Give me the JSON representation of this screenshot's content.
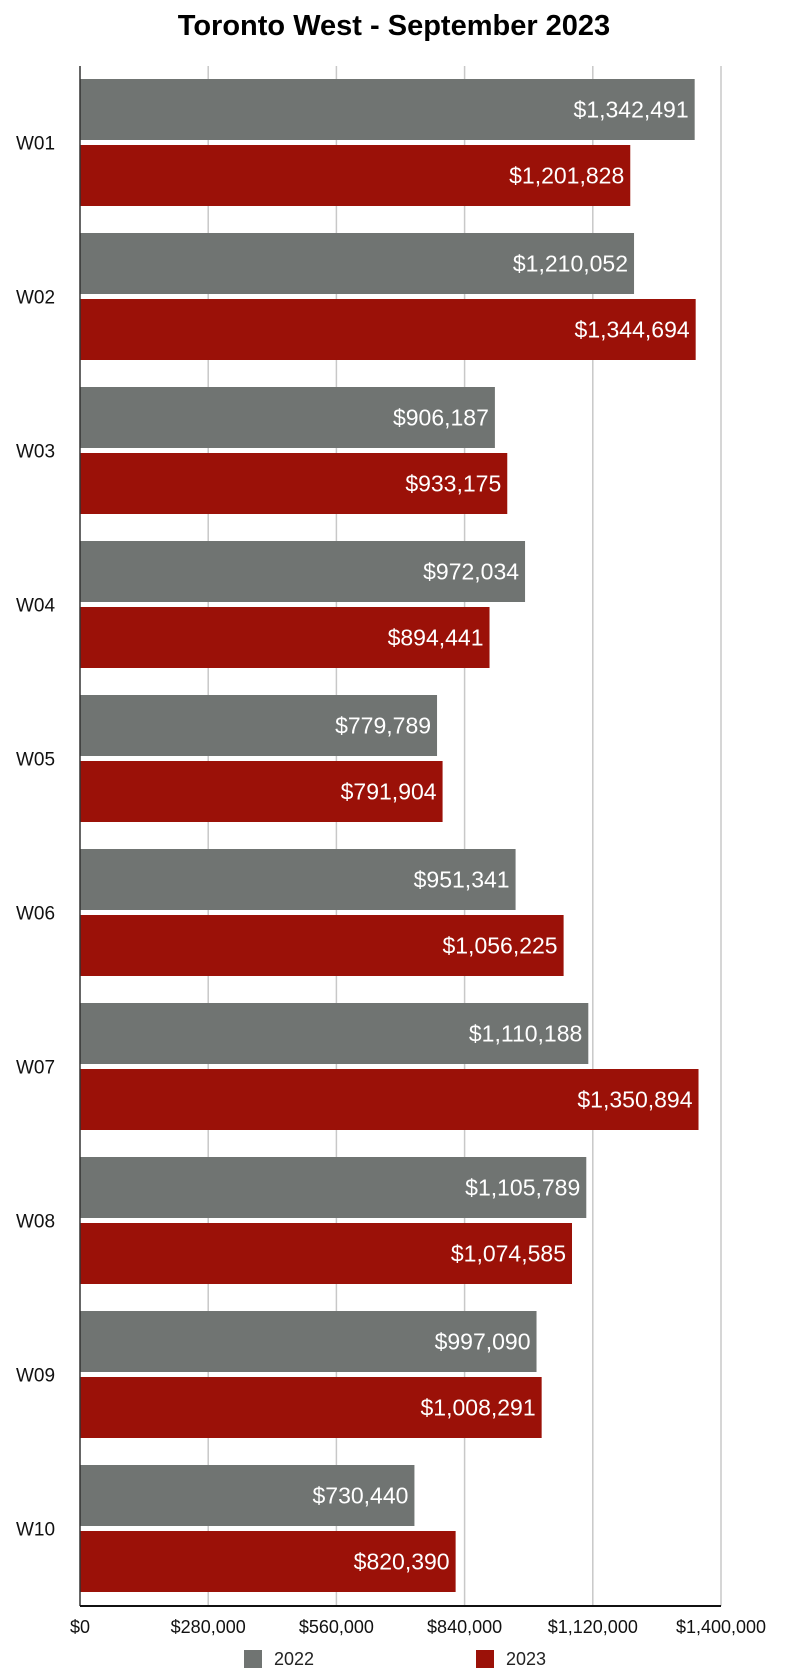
{
  "chart_data": {
    "type": "bar",
    "orientation": "horizontal",
    "title": "Toronto West - September 2023",
    "categories": [
      "W01",
      "W02",
      "W03",
      "W04",
      "W05",
      "W06",
      "W07",
      "W08",
      "W09",
      "W10"
    ],
    "series": [
      {
        "name": "2022",
        "color": "#707472",
        "values": [
          1342491,
          1210052,
          906187,
          972034,
          779789,
          951341,
          1110188,
          1105789,
          997090,
          730440
        ],
        "labels": [
          "$1,342,491",
          "$1,210,052",
          "$906,187",
          "$972,034",
          "$779,789",
          "$951,341",
          "$1,110,188",
          "$1,105,789",
          "$997,090",
          "$730,440"
        ]
      },
      {
        "name": "2023",
        "color": "#9b1108",
        "values": [
          1201828,
          1344694,
          933175,
          894441,
          791904,
          1056225,
          1350894,
          1074585,
          1008291,
          820390
        ],
        "labels": [
          "$1,201,828",
          "$1,344,694",
          "$933,175",
          "$894,441",
          "$791,904",
          "$1,056,225",
          "$1,350,894",
          "$1,074,585",
          "$1,008,291",
          "$820,390"
        ]
      }
    ],
    "xlim": [
      0,
      1400000
    ],
    "xticks": [
      0,
      280000,
      560000,
      840000,
      1120000,
      1400000
    ],
    "xtick_labels": [
      "$0",
      "$280,000",
      "$560,000",
      "$840,000",
      "$1,120,000",
      "$1,400,000"
    ],
    "grid": true,
    "legend": "bottom"
  }
}
